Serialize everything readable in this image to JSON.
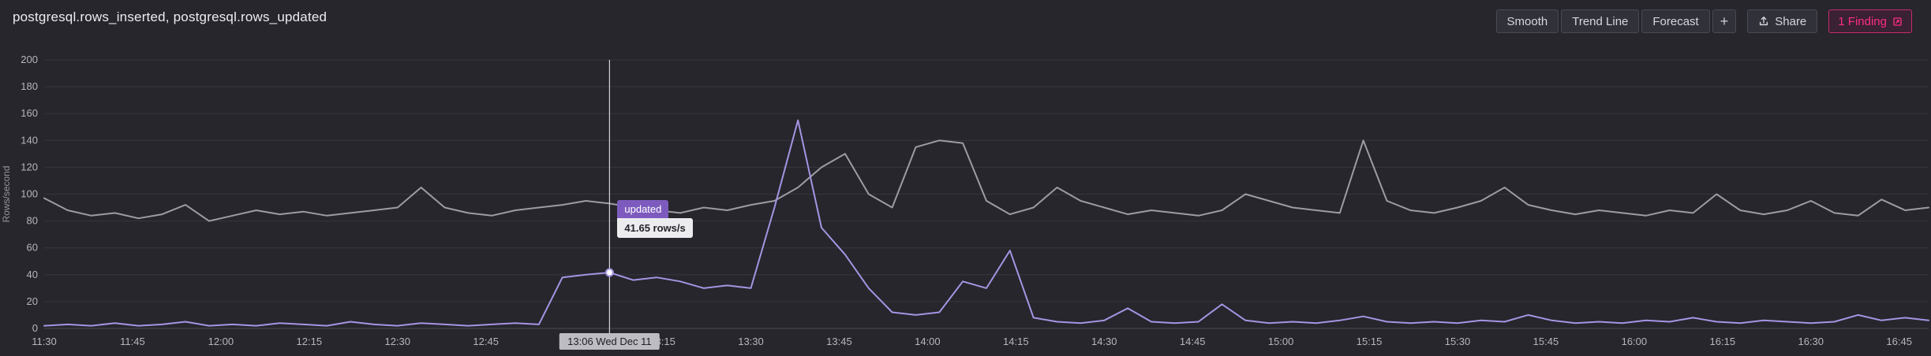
{
  "header": {
    "title": "postgresql.rows_inserted, postgresql.rows_updated"
  },
  "toolbar": {
    "smooth": "Smooth",
    "trend_line": "Trend Line",
    "forecast": "Forecast",
    "plus": "+",
    "share": "Share",
    "finding": "1 Finding"
  },
  "colors": {
    "background": "#26262c",
    "gridline": "#36363e",
    "axis_text": "#b6b6bd",
    "inserted_series": "#9c9ca3",
    "updated_series": "#a694e3",
    "tooltip_badge": "#7d5bbe",
    "finding_pink": "#ff2d87",
    "crosshair": "#d2d2d8"
  },
  "tooltip": {
    "series_label": "updated",
    "value_label": "41.65 rows/s",
    "cursor_time_label": "13:06 Wed Dec 11",
    "time_minutes_from_start": 96,
    "value": 41.65
  },
  "chart_data": {
    "type": "line",
    "title": "postgresql.rows_inserted, postgresql.rows_updated",
    "xlabel": "",
    "ylabel": "Rows/second",
    "ylim": [
      0,
      200
    ],
    "y_ticks": [
      0,
      20,
      40,
      60,
      80,
      100,
      120,
      140,
      160,
      180,
      200
    ],
    "grid": "horizontal",
    "legend_position": "none",
    "x_start_label": "11:30",
    "x_step_minutes": 4,
    "x_domain_minutes": 320,
    "x_tick_interval_minutes": 15,
    "x_tick_labels": [
      "11:30",
      "11:45",
      "12:00",
      "12:15",
      "12:30",
      "12:45",
      "13:00",
      "13:15",
      "13:30",
      "13:45",
      "14:00",
      "14:15",
      "14:30",
      "14:45",
      "15:00",
      "15:15",
      "15:30",
      "15:45",
      "16:00",
      "16:15",
      "16:30",
      "16:45"
    ],
    "series": [
      {
        "name": "postgresql.rows_inserted",
        "color": "#9c9ca3",
        "values": [
          97,
          88,
          84,
          86,
          82,
          85,
          92,
          80,
          84,
          88,
          85,
          87,
          84,
          86,
          88,
          90,
          105,
          90,
          86,
          84,
          88,
          90,
          92,
          95,
          93,
          90,
          88,
          86,
          90,
          88,
          92,
          95,
          105,
          120,
          130,
          100,
          90,
          135,
          140,
          138,
          95,
          85,
          90,
          105,
          95,
          90,
          85,
          88,
          86,
          84,
          88,
          100,
          95,
          90,
          88,
          86,
          140,
          95,
          88,
          86,
          90,
          95,
          105,
          92,
          88,
          85,
          88,
          86,
          84,
          88,
          86,
          100,
          88,
          85,
          88,
          95,
          86,
          84,
          96,
          88,
          90
        ]
      },
      {
        "name": "postgresql.rows_updated",
        "color": "#a694e3",
        "values": [
          2,
          3,
          2,
          4,
          2,
          3,
          5,
          2,
          3,
          2,
          4,
          3,
          2,
          5,
          3,
          2,
          4,
          3,
          2,
          3,
          4,
          3,
          38,
          40,
          41.65,
          36,
          38,
          35,
          30,
          32,
          30,
          90,
          155,
          75,
          55,
          30,
          12,
          10,
          12,
          35,
          30,
          58,
          8,
          5,
          4,
          6,
          15,
          5,
          4,
          5,
          18,
          6,
          4,
          5,
          4,
          6,
          9,
          5,
          4,
          5,
          4,
          6,
          5,
          10,
          6,
          4,
          5,
          4,
          6,
          5,
          8,
          5,
          4,
          6,
          5,
          4,
          5,
          10,
          6,
          8,
          6
        ]
      }
    ]
  }
}
